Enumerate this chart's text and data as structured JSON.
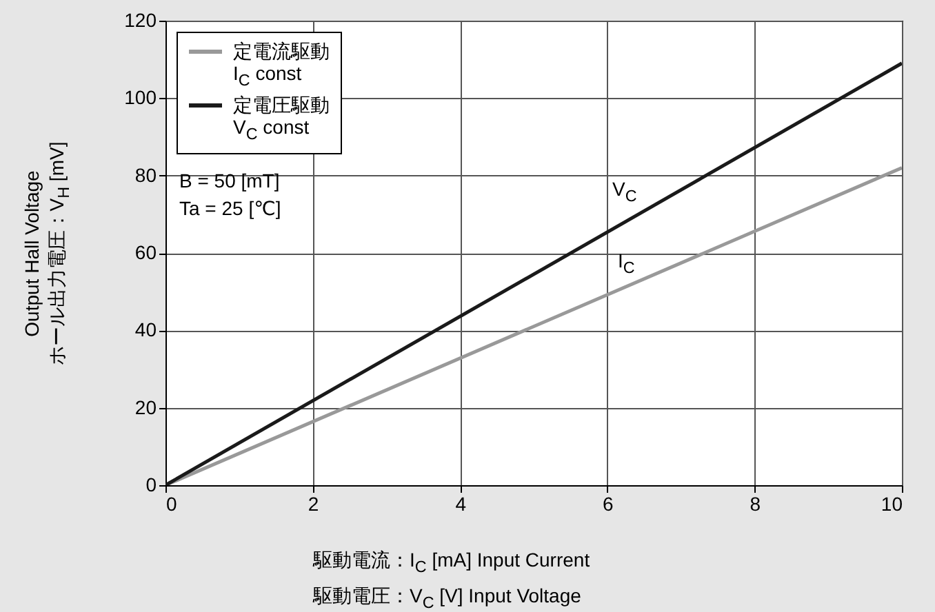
{
  "chart_data": {
    "type": "line",
    "xlabel": "駆動電流：I$_{C}$ [mA]  Input Current\n駆動電圧：V$_{C}$ [V]  Input Voltage",
    "ylabel": "Output Hall Voltage\nホール出力電圧：V$_{H}$ [mV]",
    "x": [
      0,
      10
    ],
    "series": [
      {
        "name": "定電流駆動\nI$_{C}$ const",
        "color": "#999999",
        "values": [
          0,
          82
        ]
      },
      {
        "name": "定電圧駆動\nV$_{C}$ const",
        "color": "#1a1a1a",
        "values": [
          0,
          109
        ]
      }
    ],
    "xlim": [
      0,
      10
    ],
    "xticks": [
      0,
      2,
      4,
      6,
      8,
      10
    ],
    "ylim": [
      0,
      120
    ],
    "yticks": [
      0,
      20,
      40,
      60,
      80,
      100,
      120
    ],
    "grid": true,
    "legend": "top left",
    "marker": "none",
    "line_style": "solid",
    "annotations": [
      "B  = 50 [mT]",
      "Ta = 25 [℃]",
      "V$_{C}$",
      "I$_{C}$"
    ]
  }
}
